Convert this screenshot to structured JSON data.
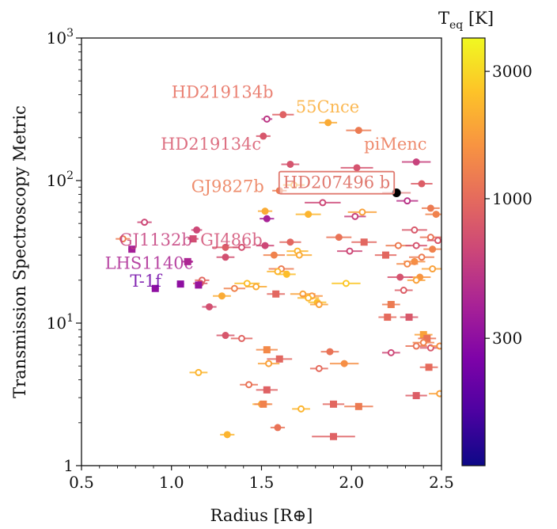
{
  "chart_data": {
    "type": "scatter",
    "xlabel": "Radius [R⊕]",
    "ylabel": "Transmission Spectroscopy Metric",
    "xlim": [
      0.5,
      2.5
    ],
    "ylim": [
      1,
      1000
    ],
    "yscale": "log",
    "x_ticks": [
      0.5,
      1.0,
      1.5,
      2.0,
      2.5
    ],
    "x_tick_labels": [
      "0.5",
      "1.0",
      "1.5",
      "2.0",
      "2.5"
    ],
    "y_tick_labels": [
      "1",
      "10^1",
      "10^2",
      "10^3"
    ],
    "y_ticks": [
      1,
      10,
      100,
      1000
    ],
    "colorbar": {
      "label": "T_eq [K]",
      "scale": "log",
      "range": [
        100,
        4000
      ],
      "ticks": [
        300,
        1000,
        3000
      ],
      "tick_labels": [
        "300",
        "1000",
        "3000"
      ],
      "colormap": "plasma",
      "stops": [
        "#0d0887",
        "#4c02a1",
        "#7e03a8",
        "#a82296",
        "#cb4679",
        "#e56b5d",
        "#f89441",
        "#fdc328",
        "#f0f921"
      ]
    },
    "highlighted": {
      "name": "HD207496 b",
      "x": 2.25,
      "y": 82,
      "color": "#000000"
    },
    "labels": [
      {
        "text": "HD219134b",
        "x": 1.0,
        "y": 380,
        "teq": 1020
      },
      {
        "text": "55Cnce",
        "x": 1.69,
        "y": 300,
        "teq": 2000
      },
      {
        "text": "HD219134c",
        "x": 0.94,
        "y": 165,
        "teq": 780
      },
      {
        "text": "piMenc",
        "x": 2.07,
        "y": 165,
        "teq": 1150
      },
      {
        "text": "GJ9827b",
        "x": 1.11,
        "y": 83,
        "teq": 1170
      },
      {
        "text": "GJ1132b",
        "x": 0.71,
        "y": 35,
        "teq": 580
      },
      {
        "text": "GJ486b",
        "x": 1.16,
        "y": 35,
        "teq": 700
      },
      {
        "text": "LHS1140c",
        "x": 0.63,
        "y": 24,
        "teq": 420
      },
      {
        "text": "T-1f",
        "x": 0.77,
        "y": 18,
        "teq": 220
      }
    ],
    "points": [
      {
        "x": 1.62,
        "y": 290,
        "teq": 900,
        "m": "c",
        "e": 0.06
      },
      {
        "x": 1.53,
        "y": 270,
        "teq": 520,
        "m": "o",
        "e": 0.03
      },
      {
        "x": 1.87,
        "y": 255,
        "teq": 2000,
        "m": "c",
        "e": 0.05
      },
      {
        "x": 2.04,
        "y": 225,
        "teq": 1200,
        "m": "c",
        "e": 0.07
      },
      {
        "x": 1.51,
        "y": 205,
        "teq": 780,
        "m": "c",
        "e": 0.04
      },
      {
        "x": 2.36,
        "y": 135,
        "teq": 600,
        "m": "c",
        "e": 0.08
      },
      {
        "x": 1.66,
        "y": 130,
        "teq": 760,
        "m": "c",
        "e": 0.05
      },
      {
        "x": 2.03,
        "y": 123,
        "teq": 750,
        "m": "c",
        "e": 0.09
      },
      {
        "x": 2.39,
        "y": 95,
        "teq": 850,
        "m": "c",
        "e": 0.06
      },
      {
        "x": 1.68,
        "y": 93,
        "teq": 1900,
        "m": "o",
        "e": 0.06
      },
      {
        "x": 1.6,
        "y": 85,
        "teq": 1200,
        "m": "c",
        "e": 0.04
      },
      {
        "x": 2.31,
        "y": 72,
        "teq": 500,
        "m": "o",
        "e": 0.06
      },
      {
        "x": 1.84,
        "y": 70,
        "teq": 650,
        "m": "o",
        "e": 0.1
      },
      {
        "x": 2.44,
        "y": 64,
        "teq": 1200,
        "m": "c",
        "e": 0.05
      },
      {
        "x": 1.52,
        "y": 61,
        "teq": 2000,
        "m": "c",
        "e": 0.04
      },
      {
        "x": 2.06,
        "y": 60,
        "teq": 1800,
        "m": "o",
        "e": 0.08
      },
      {
        "x": 2.47,
        "y": 58,
        "teq": 1300,
        "m": "c",
        "e": 0.06
      },
      {
        "x": 1.76,
        "y": 58,
        "teq": 2200,
        "m": "c",
        "e": 0.07
      },
      {
        "x": 2.02,
        "y": 56,
        "teq": 600,
        "m": "o",
        "e": 0.06
      },
      {
        "x": 1.53,
        "y": 54,
        "teq": 400,
        "m": "c",
        "e": 0.04
      },
      {
        "x": 0.85,
        "y": 51,
        "teq": 650,
        "m": "o",
        "e": 0.04
      },
      {
        "x": 1.14,
        "y": 45,
        "teq": 650,
        "m": "c",
        "e": 0.03
      },
      {
        "x": 2.35,
        "y": 45,
        "teq": 800,
        "m": "o",
        "e": 0.07
      },
      {
        "x": 1.12,
        "y": 39,
        "teq": 700,
        "m": "s",
        "e": 0.03
      },
      {
        "x": 1.09,
        "y": 27,
        "teq": 420,
        "m": "s",
        "e": 0.03
      },
      {
        "x": 2.44,
        "y": 40,
        "teq": 1100,
        "m": "o",
        "e": 0.06
      },
      {
        "x": 1.93,
        "y": 40,
        "teq": 1100,
        "m": "c",
        "e": 0.07
      },
      {
        "x": 2.48,
        "y": 38,
        "teq": 800,
        "m": "o",
        "e": 0.06
      },
      {
        "x": 2.07,
        "y": 37,
        "teq": 950,
        "m": "s",
        "e": 0.07
      },
      {
        "x": 1.66,
        "y": 37,
        "teq": 950,
        "m": "c",
        "e": 0.06
      },
      {
        "x": 1.52,
        "y": 35,
        "teq": 650,
        "m": "c",
        "e": 0.05
      },
      {
        "x": 1.3,
        "y": 34,
        "teq": 850,
        "m": "c",
        "e": 0.07
      },
      {
        "x": 1.39,
        "y": 34,
        "teq": 720,
        "m": "o",
        "e": 0.05
      },
      {
        "x": 0.73,
        "y": 39,
        "teq": 1200,
        "m": "o",
        "e": 0.04
      },
      {
        "x": 2.26,
        "y": 35,
        "teq": 1200,
        "m": "o",
        "e": 0.07
      },
      {
        "x": 2.36,
        "y": 35,
        "teq": 750,
        "m": "o",
        "e": 0.06
      },
      {
        "x": 1.99,
        "y": 32,
        "teq": 650,
        "m": "o",
        "e": 0.07
      },
      {
        "x": 1.7,
        "y": 32,
        "teq": 2200,
        "m": "o",
        "e": 0.06
      },
      {
        "x": 2.45,
        "y": 33,
        "teq": 1300,
        "m": "c",
        "e": 0.05
      },
      {
        "x": 1.57,
        "y": 30,
        "teq": 1300,
        "m": "c",
        "e": 0.06
      },
      {
        "x": 1.71,
        "y": 30,
        "teq": 2000,
        "m": "o",
        "e": 0.07
      },
      {
        "x": 2.19,
        "y": 30,
        "teq": 950,
        "m": "s",
        "e": 0.06
      },
      {
        "x": 1.3,
        "y": 29,
        "teq": 720,
        "m": "c",
        "e": 0.05
      },
      {
        "x": 2.39,
        "y": 29,
        "teq": 1200,
        "m": "o",
        "e": 0.07
      },
      {
        "x": 2.35,
        "y": 27,
        "teq": 1500,
        "m": "c",
        "e": 0.06
      },
      {
        "x": 2.31,
        "y": 26,
        "teq": 1400,
        "m": "o",
        "e": 0.06
      },
      {
        "x": 2.45,
        "y": 24,
        "teq": 1800,
        "m": "o",
        "e": 0.06
      },
      {
        "x": 1.61,
        "y": 24,
        "teq": 1200,
        "m": "o",
        "e": 0.07
      },
      {
        "x": 1.59,
        "y": 23,
        "teq": 2200,
        "m": "o",
        "e": 0.06
      },
      {
        "x": 1.64,
        "y": 22,
        "teq": 2400,
        "m": "c",
        "e": 0.05
      },
      {
        "x": 2.38,
        "y": 21,
        "teq": 1600,
        "m": "c",
        "e": 0.06
      },
      {
        "x": 2.27,
        "y": 21,
        "teq": 750,
        "m": "c",
        "e": 0.07
      },
      {
        "x": 2.36,
        "y": 20,
        "teq": 1800,
        "m": "o",
        "e": 0.05
      },
      {
        "x": 1.17,
        "y": 20,
        "teq": 950,
        "m": "o",
        "e": 0.04
      },
      {
        "x": 1.16,
        "y": 19,
        "teq": 800,
        "m": "c",
        "e": 0.04
      },
      {
        "x": 1.42,
        "y": 19,
        "teq": 2400,
        "m": "o",
        "e": 0.07
      },
      {
        "x": 1.47,
        "y": 18,
        "teq": 2000,
        "m": "o",
        "e": 0.06
      },
      {
        "x": 1.97,
        "y": 19,
        "teq": 2600,
        "m": "o",
        "e": 0.08
      },
      {
        "x": 1.35,
        "y": 17.5,
        "teq": 1300,
        "m": "o",
        "e": 0.06
      },
      {
        "x": 2.29,
        "y": 17,
        "teq": 850,
        "m": "o",
        "e": 0.05
      },
      {
        "x": 1.58,
        "y": 16,
        "teq": 950,
        "m": "s",
        "e": 0.05
      },
      {
        "x": 1.73,
        "y": 16,
        "teq": 1800,
        "m": "o",
        "e": 0.07
      },
      {
        "x": 1.78,
        "y": 15.5,
        "teq": 1600,
        "m": "o",
        "e": 0.06
      },
      {
        "x": 1.76,
        "y": 15,
        "teq": 2200,
        "m": "o",
        "e": 0.06
      },
      {
        "x": 1.28,
        "y": 15.5,
        "teq": 2000,
        "m": "c",
        "e": 0.05
      },
      {
        "x": 1.81,
        "y": 14,
        "teq": 2400,
        "m": "c",
        "e": 0.05
      },
      {
        "x": 1.82,
        "y": 13.5,
        "teq": 1800,
        "m": "o",
        "e": 0.05
      },
      {
        "x": 2.22,
        "y": 13.5,
        "teq": 1200,
        "m": "s",
        "e": 0.05
      },
      {
        "x": 1.21,
        "y": 13,
        "teq": 720,
        "m": "c",
        "e": 0.04
      },
      {
        "x": 2.2,
        "y": 11,
        "teq": 1000,
        "m": "s",
        "e": 0.05
      },
      {
        "x": 2.32,
        "y": 11,
        "teq": 800,
        "m": "s",
        "e": 0.05
      },
      {
        "x": 1.3,
        "y": 8.2,
        "teq": 780,
        "m": "c",
        "e": 0.05
      },
      {
        "x": 1.39,
        "y": 7.8,
        "teq": 920,
        "m": "o",
        "e": 0.06
      },
      {
        "x": 2.4,
        "y": 8.3,
        "teq": 1800,
        "m": "s",
        "e": 0.05
      },
      {
        "x": 2.42,
        "y": 7.8,
        "teq": 1100,
        "m": "s",
        "e": 0.05
      },
      {
        "x": 2.36,
        "y": 6.9,
        "teq": 1100,
        "m": "o",
        "e": 0.06
      },
      {
        "x": 2.4,
        "y": 7.3,
        "teq": 1300,
        "m": "o",
        "e": 0.06
      },
      {
        "x": 2.44,
        "y": 6.7,
        "teq": 800,
        "m": "o",
        "e": 0.06
      },
      {
        "x": 2.49,
        "y": 6.9,
        "teq": 1500,
        "m": "o",
        "e": 0.05
      },
      {
        "x": 1.53,
        "y": 6.5,
        "teq": 1400,
        "m": "s",
        "e": 0.06
      },
      {
        "x": 1.88,
        "y": 6.3,
        "teq": 1100,
        "m": "c",
        "e": 0.05
      },
      {
        "x": 2.22,
        "y": 6.2,
        "teq": 650,
        "m": "o",
        "e": 0.05
      },
      {
        "x": 1.6,
        "y": 5.6,
        "teq": 950,
        "m": "s",
        "e": 0.07
      },
      {
        "x": 1.54,
        "y": 5.2,
        "teq": 1800,
        "m": "o",
        "e": 0.06
      },
      {
        "x": 1.96,
        "y": 5.2,
        "teq": 1500,
        "m": "c",
        "e": 0.08
      },
      {
        "x": 1.82,
        "y": 4.8,
        "teq": 1000,
        "m": "o",
        "e": 0.05
      },
      {
        "x": 2.43,
        "y": 4.9,
        "teq": 1000,
        "m": "s",
        "e": 0.05
      },
      {
        "x": 1.15,
        "y": 4.5,
        "teq": 2200,
        "m": "o",
        "e": 0.05
      },
      {
        "x": 1.43,
        "y": 3.7,
        "teq": 1100,
        "m": "o",
        "e": 0.05
      },
      {
        "x": 1.53,
        "y": 3.4,
        "teq": 900,
        "m": "s",
        "e": 0.06
      },
      {
        "x": 2.36,
        "y": 3.1,
        "teq": 850,
        "m": "s",
        "e": 0.06
      },
      {
        "x": 2.49,
        "y": 3.2,
        "teq": 1800,
        "m": "o",
        "e": 0.06
      },
      {
        "x": 1.5,
        "y": 2.7,
        "teq": 2200,
        "m": "o",
        "e": 0.05
      },
      {
        "x": 1.51,
        "y": 2.7,
        "teq": 1300,
        "m": "s",
        "e": 0.05
      },
      {
        "x": 1.9,
        "y": 2.7,
        "teq": 950,
        "m": "s",
        "e": 0.06
      },
      {
        "x": 1.72,
        "y": 2.5,
        "teq": 2200,
        "m": "o",
        "e": 0.05
      },
      {
        "x": 2.04,
        "y": 2.6,
        "teq": 1200,
        "m": "s",
        "e": 0.08
      },
      {
        "x": 1.31,
        "y": 1.65,
        "teq": 2200,
        "m": "c",
        "e": 0.04
      },
      {
        "x": 1.59,
        "y": 1.85,
        "teq": 1100,
        "m": "c",
        "e": 0.04
      },
      {
        "x": 1.9,
        "y": 1.6,
        "teq": 900,
        "m": "s",
        "e": 0.12
      },
      {
        "x": 0.78,
        "y": 33,
        "teq": 380,
        "m": "s",
        "e": 0.02
      },
      {
        "x": 0.91,
        "y": 17.5,
        "teq": 300,
        "m": "s",
        "e": 0.02
      },
      {
        "x": 1.05,
        "y": 18.8,
        "teq": 300,
        "m": "s",
        "e": 0.02
      },
      {
        "x": 1.15,
        "y": 18.5,
        "teq": 330,
        "m": "s",
        "e": 0.02
      }
    ]
  }
}
